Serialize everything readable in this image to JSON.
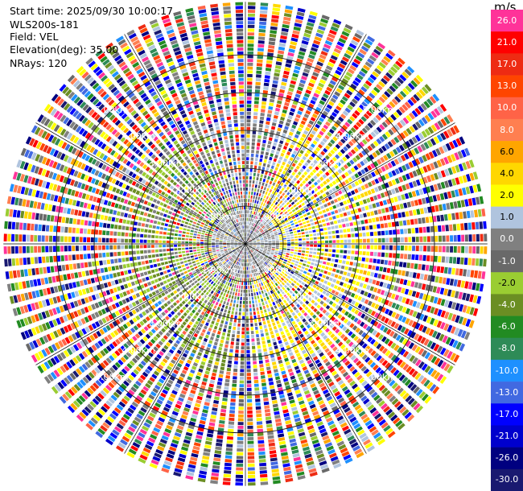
{
  "header": {
    "start_time": "Start time: 2025/09/30 10:00:17",
    "instrument": "WLS200s-181",
    "field": "Field: VEL",
    "elevation": "Elevation(deg): 35.00",
    "nrays": "NRays: 120"
  },
  "colorbar": {
    "unit": "m/s",
    "levels": [
      {
        "label": "26.0",
        "color": "#ff3399"
      },
      {
        "label": "21.0",
        "color": "#ff0000"
      },
      {
        "label": "17.0",
        "color": "#ee2b13"
      },
      {
        "label": "13.0",
        "color": "#ff4500"
      },
      {
        "label": "10.0",
        "color": "#ff6347"
      },
      {
        "label": "8.0",
        "color": "#ff7f50"
      },
      {
        "label": "6.0",
        "color": "#ffa500"
      },
      {
        "label": "4.0",
        "color": "#ffd700"
      },
      {
        "label": "2.0",
        "color": "#ffff00"
      },
      {
        "label": "1.0",
        "color": "#b0c4de"
      },
      {
        "label": "0.0",
        "color": "#808080"
      },
      {
        "label": "-1.0",
        "color": "#696969"
      },
      {
        "label": "-2.0",
        "color": "#9acd32"
      },
      {
        "label": "-4.0",
        "color": "#6b8e23"
      },
      {
        "label": "-6.0",
        "color": "#228b22"
      },
      {
        "label": "-8.0",
        "color": "#2e8b57"
      },
      {
        "label": "-10.0",
        "color": "#1e90ff"
      },
      {
        "label": "-13.0",
        "color": "#4169e1"
      },
      {
        "label": "-17.0",
        "color": "#0000ff"
      },
      {
        "label": "-21.0",
        "color": "#0000cd"
      },
      {
        "label": "-26.0",
        "color": "#000080"
      },
      {
        "label": "-30.0",
        "color": "#191970"
      }
    ]
  },
  "chart_data": {
    "type": "heatmap",
    "projection": "polar-ppi",
    "field": "VEL",
    "elevation_deg": 35.0,
    "nrays": 120,
    "range_rings_km": [
      {
        "value": 1,
        "label": "1.00km"
      },
      {
        "value": 2,
        "label": "2.00km"
      },
      {
        "value": 3,
        "label": "3.00km"
      },
      {
        "value": 4,
        "label": "4.00km"
      },
      {
        "value": 5,
        "label": "5.00km"
      }
    ],
    "max_range_km": 6.4,
    "gate_spacing_km": 0.1,
    "grid_spokes_deg": [
      0,
      30,
      60,
      90,
      120,
      150,
      180,
      210,
      240,
      270,
      300,
      330
    ],
    "pattern": {
      "near_range_km": 0.9,
      "near_values": [
        0.0,
        -1.0,
        1.0
      ],
      "mid_range_km": 3.5,
      "mid_west_values": [
        -2.0,
        -4.0,
        0.0
      ],
      "mid_east_values": [
        2.0,
        4.0,
        1.0
      ],
      "far_values": "all levels"
    }
  }
}
